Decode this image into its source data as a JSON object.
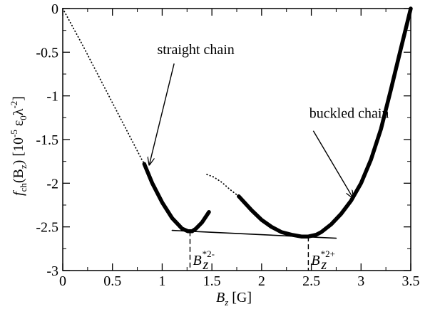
{
  "chart_data": {
    "type": "line",
    "title": "",
    "xlabel": {
      "main": "B",
      "sub": "z",
      "unit": " [G]"
    },
    "ylabel": {
      "f": "f",
      "fsub": "ch",
      "arg": "(B",
      "argsub": "z",
      "close": ")",
      "unit_open": "  [10",
      "unit_exp1": "-5",
      "unit_eps": " ε",
      "unit_epssub": "0",
      "unit_lambda": "λ",
      "unit_exp2": "-2",
      "unit_close": "]"
    },
    "xlim": [
      0,
      3.5
    ],
    "ylim": [
      -3,
      0
    ],
    "xticks": [
      0,
      0.5,
      1,
      1.5,
      2,
      2.5,
      3,
      3.5
    ],
    "xtick_labels": [
      "0",
      "0.5",
      "1",
      "1.5",
      "2",
      "2.5",
      "3",
      "3.5"
    ],
    "yticks": [
      0,
      -0.5,
      -1,
      -1.5,
      -2,
      -2.5,
      -3
    ],
    "ytick_labels": [
      "0",
      "-0.5",
      "-1",
      "-1.5",
      "-2",
      "-2.5",
      "-3"
    ],
    "grid": false,
    "series": [
      {
        "style": "dotted",
        "x": [
          0.0,
          0.2,
          0.4,
          0.6,
          0.8,
          0.83
        ],
        "y": [
          0.0,
          -0.42,
          -0.86,
          -1.3,
          -1.74,
          -1.79
        ]
      },
      {
        "style": "thick",
        "x": [
          0.82,
          0.9,
          1.0,
          1.1,
          1.2,
          1.26,
          1.3,
          1.34,
          1.4,
          1.47
        ],
        "y": [
          -1.78,
          -2.0,
          -2.22,
          -2.4,
          -2.52,
          -2.55,
          -2.55,
          -2.52,
          -2.45,
          -2.33
        ]
      },
      {
        "style": "dotted",
        "x": [
          1.45,
          1.52,
          1.6,
          1.68,
          1.77
        ],
        "y": [
          -1.9,
          -1.93,
          -1.99,
          -2.07,
          -2.15
        ]
      },
      {
        "style": "thick",
        "x": [
          1.77,
          1.9,
          2.0,
          2.1,
          2.2,
          2.3,
          2.4,
          2.47,
          2.55,
          2.6,
          2.7,
          2.8,
          2.9,
          3.0,
          3.1,
          3.2,
          3.3,
          3.4,
          3.5
        ],
        "y": [
          -2.15,
          -2.31,
          -2.42,
          -2.5,
          -2.56,
          -2.59,
          -2.61,
          -2.61,
          -2.59,
          -2.56,
          -2.47,
          -2.35,
          -2.2,
          -2.0,
          -1.73,
          -1.38,
          -0.93,
          -0.46,
          0.0
        ]
      },
      {
        "style": "thin",
        "x": [
          1.1,
          2.75
        ],
        "y": [
          -2.54,
          -2.63
        ]
      }
    ],
    "markers": [
      {
        "x": 1.28,
        "y_top": -2.55,
        "label_main": "B",
        "label_sub": "z",
        "label_sup": "*2-"
      },
      {
        "x": 2.47,
        "y_top": -2.61,
        "label_main": "B",
        "label_sub": "z",
        "label_sup": "*2+"
      }
    ],
    "annotations": [
      {
        "text": "straight chain",
        "text_x": 0.95,
        "text_y": -0.52,
        "arrow_from": [
          1.12,
          -0.63
        ],
        "arrow_to": [
          0.87,
          -1.79
        ]
      },
      {
        "text": "buckled chain",
        "text_x": 2.48,
        "text_y": -1.25,
        "arrow_from": [
          2.52,
          -1.4
        ],
        "arrow_to": [
          2.92,
          -2.17
        ]
      }
    ]
  }
}
